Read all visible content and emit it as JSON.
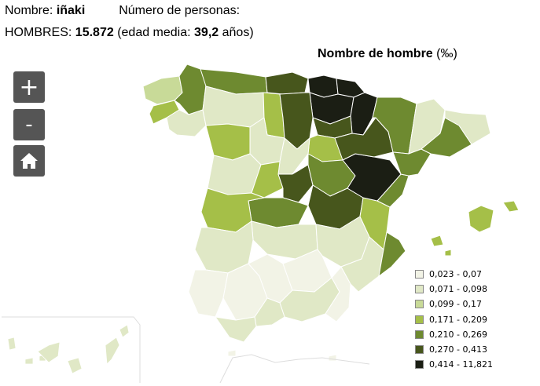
{
  "info": {
    "name_label": "Nombre:",
    "name_value": "iñaki",
    "persons_label": "Número de personas:",
    "men_label": "HOMBRES:",
    "men_value": "15.872",
    "age_label_open": "(edad media:",
    "age_value": "39,2",
    "age_unit_close": "años)"
  },
  "map": {
    "title": "Nombre de hombre",
    "title_unit": "(‰)"
  },
  "controls": {
    "zoom_in": "+",
    "zoom_out": "-",
    "home_icon": "home-icon"
  },
  "legend": [
    {
      "label": "0,023 - 0,07",
      "color": "#f2f3e6"
    },
    {
      "label": "0,071 - 0,098",
      "color": "#e0e8c6"
    },
    {
      "label": "0,099 - 0,17",
      "color": "#c8da98"
    },
    {
      "label": "0,171 - 0,209",
      "color": "#a5bf48"
    },
    {
      "label": "0,210 - 0,269",
      "color": "#6e8a30"
    },
    {
      "label": "0,270 - 0,413",
      "color": "#47561c"
    },
    {
      "label": "0,414 - 11,821",
      "color": "#1b1e14"
    }
  ]
}
